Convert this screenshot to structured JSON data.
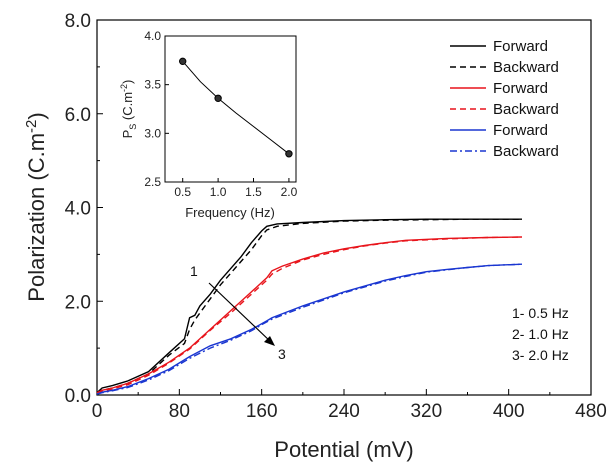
{
  "chart_data": [
    {
      "type": "line",
      "xlabel": "Potential (mV)",
      "ylabel_main": "Polarization (C.m",
      "ylabel_sup": "-2",
      "ylabel_close": ")",
      "xlim": [
        0,
        480
      ],
      "ylim": [
        0,
        8
      ],
      "xticks": [
        0,
        80,
        160,
        240,
        320,
        400,
        480
      ],
      "xtick_labels": [
        "0",
        "80",
        "160",
        "240",
        "320",
        "400",
        "480"
      ],
      "yticks": [
        0,
        2,
        4,
        6,
        8
      ],
      "ytick_labels": [
        "0.0",
        "2.0",
        "4.0",
        "6.0",
        "8.0"
      ],
      "legend_position": "top-right",
      "series": [
        {
          "name": "Forward",
          "color": "#000000",
          "dash": "solid",
          "x": [
            0,
            5,
            15,
            30,
            50,
            70,
            85,
            90,
            95,
            100,
            110,
            120,
            130,
            140,
            150,
            160,
            165,
            175,
            200,
            240,
            280,
            320,
            360,
            413
          ],
          "y": [
            0.05,
            0.15,
            0.2,
            0.3,
            0.5,
            0.9,
            1.2,
            1.65,
            1.7,
            1.9,
            2.15,
            2.45,
            2.7,
            2.95,
            3.25,
            3.5,
            3.6,
            3.65,
            3.68,
            3.72,
            3.74,
            3.75,
            3.75,
            3.75
          ]
        },
        {
          "name": "Backward",
          "color": "#000000",
          "dash": "dashed",
          "x": [
            0,
            5,
            15,
            30,
            50,
            70,
            85,
            90,
            95,
            100,
            110,
            120,
            130,
            140,
            150,
            160,
            165,
            175,
            200,
            240,
            280,
            320,
            360,
            413
          ],
          "y": [
            0.05,
            0.1,
            0.15,
            0.25,
            0.45,
            0.85,
            1.1,
            1.4,
            1.6,
            1.75,
            2.05,
            2.35,
            2.6,
            2.85,
            3.1,
            3.4,
            3.52,
            3.6,
            3.66,
            3.71,
            3.73,
            3.74,
            3.75,
            3.75
          ]
        },
        {
          "name": "Forward",
          "color": "#e8141b",
          "dash": "solid",
          "x": [
            0,
            5,
            15,
            30,
            50,
            70,
            90,
            110,
            130,
            150,
            165,
            170,
            180,
            200,
            220,
            240,
            260,
            280,
            300,
            340,
            380,
            413
          ],
          "y": [
            0.05,
            0.1,
            0.15,
            0.25,
            0.45,
            0.7,
            1.0,
            1.4,
            1.8,
            2.2,
            2.5,
            2.65,
            2.75,
            2.9,
            3.03,
            3.12,
            3.19,
            3.25,
            3.3,
            3.34,
            3.36,
            3.37
          ]
        },
        {
          "name": "Backward",
          "color": "#e8141b",
          "dash": "dashed",
          "x": [
            0,
            5,
            15,
            30,
            50,
            70,
            90,
            110,
            130,
            150,
            165,
            170,
            180,
            200,
            220,
            240,
            260,
            280,
            300,
            340,
            380,
            413
          ],
          "y": [
            0.05,
            0.08,
            0.13,
            0.22,
            0.42,
            0.68,
            0.98,
            1.38,
            1.75,
            2.15,
            2.45,
            2.58,
            2.7,
            2.88,
            3.0,
            3.1,
            3.18,
            3.24,
            3.29,
            3.33,
            3.36,
            3.37
          ]
        },
        {
          "name": "Forward",
          "color": "#1a36d1",
          "dash": "solid",
          "x": [
            0,
            5,
            15,
            30,
            50,
            70,
            90,
            110,
            130,
            150,
            160,
            165,
            170,
            200,
            240,
            280,
            300,
            320,
            340,
            360,
            380,
            413
          ],
          "y": [
            0.02,
            0.06,
            0.1,
            0.18,
            0.35,
            0.55,
            0.82,
            1.05,
            1.2,
            1.4,
            1.52,
            1.58,
            1.65,
            1.9,
            2.2,
            2.45,
            2.55,
            2.63,
            2.68,
            2.72,
            2.76,
            2.79
          ]
        },
        {
          "name": "Backward",
          "color": "#1a36d1",
          "dash": "dashdot",
          "x": [
            0,
            5,
            15,
            30,
            50,
            70,
            90,
            110,
            130,
            150,
            160,
            165,
            170,
            200,
            240,
            280,
            300,
            320,
            340,
            360,
            380,
            413
          ],
          "y": [
            0.02,
            0.05,
            0.09,
            0.16,
            0.32,
            0.52,
            0.78,
            1.0,
            1.17,
            1.37,
            1.5,
            1.56,
            1.62,
            1.87,
            2.18,
            2.43,
            2.53,
            2.62,
            2.67,
            2.72,
            2.76,
            2.79
          ]
        }
      ],
      "annotations": {
        "arrow_start_label": "1",
        "arrow_end_label": "3",
        "notes": [
          "1- 0.5 Hz",
          "2- 1.0 Hz",
          "3- 2.0 Hz"
        ]
      }
    },
    {
      "type": "scatter",
      "xlabel": "Frequency (Hz)",
      "ylabel_main": "P",
      "ylabel_sub": "S",
      "ylabel_rest": " (C.m",
      "ylabel_sup": "-2",
      "ylabel_close": ")",
      "xlim": [
        0.25,
        2.1
      ],
      "ylim": [
        2.5,
        4.0
      ],
      "xticks": [
        0.5,
        1.0,
        1.5,
        2.0
      ],
      "xtick_labels": [
        "0.5",
        "1.0",
        "1.5",
        "2.0"
      ],
      "yticks": [
        2.5,
        3.0,
        3.5,
        4.0
      ],
      "ytick_labels": [
        "2.5",
        "3.0",
        "3.5",
        "4.0"
      ],
      "x": [
        0.5,
        1.0,
        2.0
      ],
      "y": [
        3.74,
        3.36,
        2.79
      ],
      "fit_x": [
        0.5,
        0.75,
        1.0,
        1.25,
        1.5,
        1.75,
        2.0
      ],
      "fit_y": [
        3.74,
        3.53,
        3.36,
        3.21,
        3.07,
        2.93,
        2.79
      ]
    }
  ]
}
